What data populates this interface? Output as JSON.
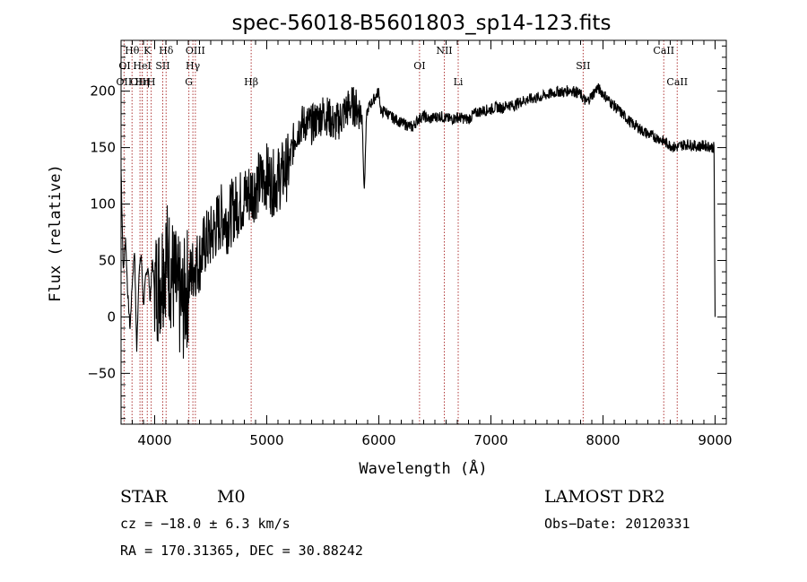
{
  "chart_data": {
    "type": "line",
    "title": "spec-56018-B5601803_sp14-123.fits",
    "xlabel": "Wavelength (Å)",
    "ylabel": "Flux (relative)",
    "xlim": [
      3700,
      9100
    ],
    "ylim": [
      -95,
      245
    ],
    "xticks": [
      4000,
      5000,
      6000,
      7000,
      8000,
      9000
    ],
    "yticks": [
      -50,
      0,
      50,
      100,
      150,
      200
    ],
    "grid": false,
    "series": [
      {
        "x": [
          3700,
          3720,
          3740,
          3760,
          3780,
          3800,
          3820,
          3840,
          3860,
          3880,
          3900,
          3920,
          3940,
          3960,
          3980,
          4000,
          4050,
          4100,
          4150,
          4200,
          4250,
          4300,
          4350,
          4400,
          4450,
          4500,
          4550,
          4600,
          4650,
          4700,
          4750,
          4800,
          4850,
          4900,
          4950,
          5000,
          5050,
          5100,
          5150,
          5200,
          5250,
          5300,
          5350,
          5400,
          5450,
          5500,
          5550,
          5600,
          5650,
          5700,
          5750,
          5800,
          5850,
          5870,
          5890,
          5910,
          5950,
          6000,
          6020,
          6050,
          6100,
          6150,
          6200,
          6250,
          6300,
          6350,
          6400,
          6450,
          6500,
          6550,
          6600,
          6650,
          6700,
          6750,
          6800,
          6850,
          6900,
          6950,
          7000,
          7050,
          7100,
          7150,
          7200,
          7250,
          7300,
          7350,
          7400,
          7450,
          7500,
          7550,
          7600,
          7650,
          7700,
          7750,
          7800,
          7850,
          7900,
          7950,
          8000,
          8050,
          8100,
          8150,
          8200,
          8250,
          8300,
          8350,
          8400,
          8450,
          8500,
          8550,
          8600,
          8650,
          8700,
          8750,
          8800,
          8850,
          8900,
          8950,
          8990,
          9000
        ],
        "y": [
          130,
          40,
          70,
          20,
          -10,
          30,
          60,
          -30,
          40,
          55,
          10,
          35,
          45,
          15,
          50,
          25,
          35,
          55,
          40,
          20,
          10,
          30,
          45,
          50,
          65,
          70,
          80,
          90,
          85,
          95,
          100,
          105,
          110,
          115,
          120,
          125,
          118,
          122,
          128,
          135,
          160,
          170,
          172,
          170,
          175,
          180,
          178,
          170,
          175,
          182,
          188,
          185,
          180,
          110,
          178,
          186,
          192,
          200,
          180,
          183,
          178,
          175,
          172,
          170,
          168,
          175,
          178,
          175,
          177,
          178,
          176,
          175,
          177,
          176,
          175,
          180,
          182,
          183,
          184,
          186,
          185,
          188,
          187,
          190,
          192,
          193,
          194,
          195,
          197,
          198,
          200,
          199,
          201,
          200,
          197,
          190,
          196,
          203,
          198,
          192,
          187,
          182,
          177,
          172,
          169,
          165,
          162,
          160,
          158,
          155,
          152,
          150,
          152,
          153,
          152,
          151,
          152,
          151,
          150,
          0
        ]
      }
    ],
    "line_markers": [
      {
        "name": "OII",
        "x": 3727,
        "label_row": 2
      },
      {
        "name": "Hθ",
        "x": 3798,
        "label_row": 0
      },
      {
        "name": "OIII",
        "x": 3869,
        "label_row": 2
      },
      {
        "name": "K",
        "x": 3934,
        "label_row": 0
      },
      {
        "name": "Hη",
        "x": 3889,
        "label_row": 2
      },
      {
        "name": "HeI",
        "x": 3889,
        "label_row": 1
      },
      {
        "name": "H",
        "x": 3969,
        "label_row": 2
      },
      {
        "name": "SII",
        "x": 4072,
        "label_row": 1
      },
      {
        "name": "Hδ",
        "x": 4102,
        "label_row": 0
      },
      {
        "name": "G",
        "x": 4305,
        "label_row": 2
      },
      {
        "name": "Hγ",
        "x": 4341,
        "label_row": 1
      },
      {
        "name": "OIII",
        "x": 4363,
        "label_row": 0
      },
      {
        "name": "Hβ",
        "x": 4861,
        "label_row": 2
      },
      {
        "name": "OI",
        "x": 6363,
        "label_row": 1
      },
      {
        "name": "NII",
        "x": 6584,
        "label_row": 0
      },
      {
        "name": "Li",
        "x": 6708,
        "label_row": 2
      },
      {
        "name": "SII",
        "x": 7823,
        "label_row": 1
      },
      {
        "name": "CaII",
        "x": 8542,
        "label_row": 0
      },
      {
        "name": "CaII",
        "x": 8662,
        "label_row": 2
      }
    ],
    "oi_left_label": {
      "name": "OI",
      "x": 3700,
      "label_row": 1
    },
    "line_marker_color": "#b03a3a",
    "spectrum_color": "#000000"
  },
  "info": {
    "class_label": "STAR",
    "subclass_label": "M0",
    "survey_label": "LAMOST DR2",
    "cz_text": "cz = −18.0 ± 6.3 km/s",
    "obs_date_text": "Obs−Date: 20120331",
    "radec_text": "RA = 170.31365, DEC =  30.88242"
  }
}
